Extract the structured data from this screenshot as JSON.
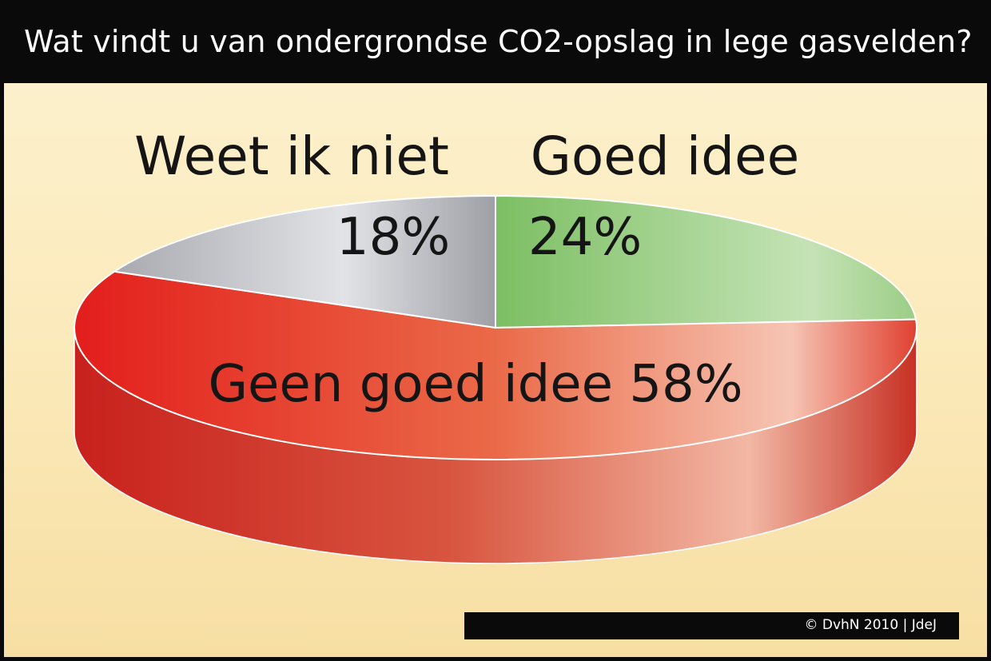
{
  "title": "Wat vindt u van ondergrondse CO2-opslag in lege gasvelden?",
  "credit": "© DvhN 2010 | JdeJ",
  "chart_data": {
    "type": "pie",
    "title": "Wat vindt u van ondergrondse CO2-opslag in lege gasvelden?",
    "slices": [
      {
        "name": "Goed idee",
        "value": 24,
        "label": "24%",
        "color": "#8fc879"
      },
      {
        "name": "Geen goed idee",
        "value": 58,
        "label": "Geen goed idee 58%",
        "color": "#e8432f"
      },
      {
        "name": "Weet ik niet",
        "value": 18,
        "label": "18%",
        "color": "#b4b5ba"
      }
    ],
    "legend": "none"
  }
}
